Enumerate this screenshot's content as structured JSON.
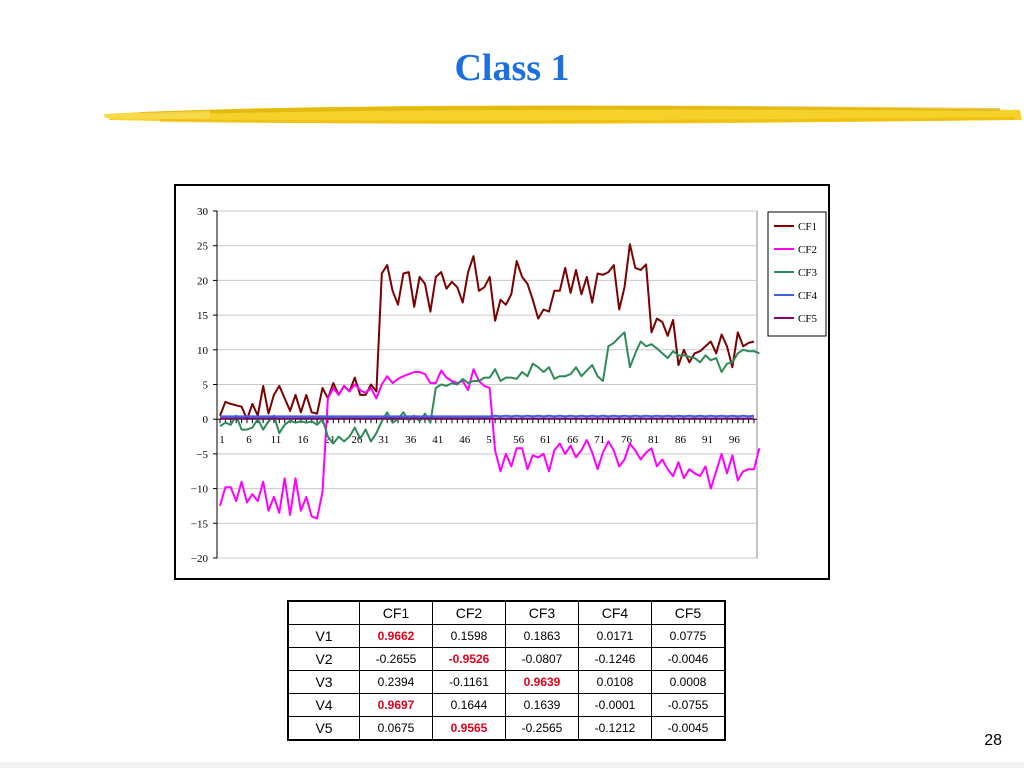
{
  "slide": {
    "title": "Class 1",
    "page_number": "28",
    "colors": {
      "title": "#1c6fe0",
      "brush": "#f5cf1f",
      "highlight": "#e3001b"
    }
  },
  "chart_data": {
    "type": "line",
    "ylim": [
      -20,
      30
    ],
    "yticks": [
      "30",
      "25",
      "20",
      "15",
      "10",
      "5",
      "0",
      "-5",
      "-10",
      "-15",
      "-20"
    ],
    "xticks": [
      "1",
      "6",
      "11",
      "16",
      "21",
      "26",
      "31",
      "36",
      "41",
      "46",
      "51",
      "56",
      "61",
      "66",
      "71",
      "76",
      "81",
      "86",
      "91",
      "96"
    ],
    "legend_position": "right",
    "series": [
      {
        "name": "CF1",
        "color": "#7b0000",
        "values": [
          0.5,
          2.5,
          2.2,
          2,
          1.8,
          0,
          2.2,
          0.5,
          4.8,
          0.8,
          3.5,
          4.8,
          3,
          1.2,
          3.5,
          1,
          3.5,
          1,
          0.8,
          4.5,
          3,
          5.2,
          3.5,
          4.8,
          4,
          6,
          3.5,
          3.5,
          5,
          4,
          21,
          22.2,
          18.5,
          16.5,
          21,
          21.2,
          16.2,
          20.5,
          19.5,
          15.5,
          20.5,
          21.2,
          18.8,
          19.8,
          19,
          16.8,
          21.2,
          23.5,
          18.5,
          19,
          20.5,
          14.2,
          17.2,
          16.5,
          18,
          22.8,
          20.5,
          19.5,
          17.2,
          14.5,
          15.8,
          15.5,
          18.5,
          18.5,
          21.8,
          18.2,
          21.5,
          18,
          20.5,
          16.8,
          21,
          20.8,
          21.2,
          22.2,
          15.8,
          19,
          25.2,
          21.8,
          21.5,
          22.3,
          12.5,
          14.5,
          14,
          12,
          14.3,
          7.8,
          10,
          8.2,
          9.5,
          9.8,
          10.5,
          11.2,
          9.5,
          12.2,
          10.5,
          7.5,
          12.5,
          10.5,
          11,
          11.2
        ]
      },
      {
        "name": "CF2",
        "color": "#ff00ff",
        "values": [
          -12.5,
          -9.8,
          -9.8,
          -11.8,
          -9,
          -12,
          -10.8,
          -11.8,
          -9,
          -13.2,
          -11.2,
          -13.5,
          -8.5,
          -13.8,
          -8.5,
          -13.2,
          -11.2,
          -14,
          -14.3,
          -10.5,
          3,
          4.5,
          3.5,
          4.8,
          4,
          5,
          4.2,
          3.8,
          4.5,
          3,
          5,
          6.2,
          5.2,
          5.8,
          6.2,
          6.5,
          6.8,
          6.8,
          6.5,
          5.2,
          5.2,
          7,
          6,
          5.5,
          5.2,
          5.5,
          4.2,
          7.2,
          5.5,
          4.8,
          4.5,
          -4.5,
          -7.5,
          -5,
          -6.8,
          -4.2,
          -4.2,
          -7.2,
          -5.2,
          -5.5,
          -5,
          -7.5,
          -4.5,
          -3.5,
          -5,
          -3.8,
          -5.5,
          -4.5,
          -3,
          -4.8,
          -7.2,
          -4.8,
          -3.2,
          -4.5,
          -6.8,
          -5.8,
          -3.5,
          -4.5,
          -5.8,
          -4.8,
          -4.2,
          -6.8,
          -5.8,
          -7.2,
          -8.2,
          -6.2,
          -8.5,
          -7.2,
          -7.8,
          -8.2,
          -6.8,
          -10,
          -7.5,
          -5,
          -7.8,
          -5.2,
          -8.8,
          -7.5,
          -7.2,
          -7.2,
          -4.2
        ]
      },
      {
        "name": "CF3",
        "color": "#2e8b57",
        "values": [
          -1,
          -0.5,
          -0.8,
          0.5,
          -1.5,
          -1.5,
          -1.2,
          0,
          -1.5,
          -0.3,
          0.5,
          -2,
          -0.8,
          -0.2,
          -0.5,
          -0.3,
          -0.5,
          -0.3,
          -0.8,
          0,
          -2.5,
          -3.5,
          -2.5,
          -3.2,
          -2.5,
          -1.2,
          -2.8,
          -1.5,
          -3.2,
          -2,
          -0.3,
          1,
          -0.5,
          0,
          1,
          -0.2,
          0.5,
          -0.3,
          0.8,
          -0.5,
          4.5,
          5,
          4.8,
          5.2,
          5,
          5.8,
          5.2,
          5.5,
          5.5,
          6,
          6,
          7.2,
          5.5,
          6,
          6,
          5.8,
          6.8,
          6.2,
          8,
          7.5,
          6.8,
          7.5,
          5.8,
          6.2,
          6.2,
          6.5,
          7.5,
          6.2,
          7,
          7.8,
          6.2,
          5.5,
          10.5,
          11,
          11.8,
          12.5,
          7.5,
          9.5,
          11.2,
          10.5,
          10.8,
          10.2,
          9.5,
          8.8,
          9.8,
          9.2,
          9.2,
          9,
          8.8,
          8.2,
          9.2,
          8.5,
          8.8,
          6.8,
          8,
          8.2,
          9.5,
          10,
          9.8,
          9.8,
          9.5
        ]
      },
      {
        "name": "CF4",
        "color": "#3f5fe8",
        "values": [
          0.4,
          0.4,
          0.4,
          0.4,
          0.4,
          0.4,
          0.4,
          0.4,
          0.4,
          0.4,
          0.4,
          0.4,
          0.4,
          0.4,
          0.4,
          0.4,
          0.4,
          0.4,
          0.4,
          0.4,
          0.4,
          0.4,
          0.4,
          0.4,
          0.4,
          0.4,
          0.4,
          0.4,
          0.4,
          0.4,
          0.4,
          0.4,
          0.4,
          0.4,
          0.4,
          0.4,
          0.4,
          0.4,
          0.4,
          0.4,
          0.4,
          0.4,
          0.4,
          0.4,
          0.4,
          0.4,
          0.4,
          0.4,
          0.4,
          0.4,
          0.4,
          0.5,
          0.4,
          0.5,
          0.4,
          0.5,
          0.4,
          0.5,
          0.4,
          0.5,
          0.4,
          0.5,
          0.4,
          0.5,
          0.4,
          0.5,
          0.4,
          0.5,
          0.4,
          0.5,
          0.4,
          0.5,
          0.4,
          0.5,
          0.4,
          0.5,
          0.4,
          0.5,
          0.4,
          0.5,
          0.4,
          0.5,
          0.4,
          0.5,
          0.4,
          0.5,
          0.4,
          0.5,
          0.4,
          0.5,
          0.4,
          0.5,
          0.4,
          0.5,
          0.4,
          0.5,
          0.4,
          0.5,
          0.4,
          0.5
        ]
      },
      {
        "name": "CF5",
        "color": "#7a0a6e",
        "values": [
          0.1,
          0.1,
          0.1,
          0.1,
          0.1,
          0.1,
          0.1,
          0.1,
          0.1,
          0.1,
          0.1,
          0.1,
          0.1,
          0.1,
          0.1,
          0.1,
          0.1,
          0.1,
          0.1,
          0.1,
          0.1,
          0.1,
          0.1,
          0.1,
          0.1,
          0.1,
          0.1,
          0.1,
          0.1,
          0.1,
          0.1,
          0.1,
          0.1,
          0.1,
          0.1,
          0.1,
          0.1,
          0.1,
          0.1,
          0.1,
          0.1,
          0.1,
          0.1,
          0.1,
          0.1,
          0.1,
          0.1,
          0.1,
          0.1,
          0.1,
          0.1,
          0.1,
          0.1,
          0.1,
          0.1,
          0.1,
          0.1,
          0.1,
          0.1,
          0.1,
          0.1,
          0.1,
          0.1,
          0.1,
          0.1,
          0.1,
          0.1,
          0.1,
          0.1,
          0.1,
          0.1,
          0.1,
          0.1,
          0.1,
          0.1,
          0.1,
          0.1,
          0.1,
          0.1,
          0.1,
          0.1,
          0.1,
          0.1,
          0.1,
          0.1,
          0.1,
          0.1,
          0.1,
          0.1,
          0.1,
          0.1,
          0.1,
          0.1,
          0.1,
          0.1,
          0.1,
          0.1,
          0.1,
          0.1,
          0.1
        ]
      }
    ]
  },
  "table": {
    "columns": [
      "CF1",
      "CF2",
      "CF3",
      "CF4",
      "CF5"
    ],
    "rows": [
      {
        "label": "V1",
        "values": [
          "0.9662",
          "0.1598",
          "0.1863",
          "0.0171",
          "0.0775"
        ],
        "highlight": [
          0
        ]
      },
      {
        "label": "V2",
        "values": [
          "-0.2655",
          "-0.9526",
          "-0.0807",
          "-0.1246",
          "-0.0046"
        ],
        "highlight": [
          1
        ]
      },
      {
        "label": "V3",
        "values": [
          "0.2394",
          "-0.1161",
          "0.9639",
          "0.0108",
          "0.0008"
        ],
        "highlight": [
          2
        ]
      },
      {
        "label": "V4",
        "values": [
          "0.9697",
          "0.1644",
          "0.1639",
          "-0.0001",
          "-0.0755"
        ],
        "highlight": [
          0
        ]
      },
      {
        "label": "V5",
        "values": [
          "0.0675",
          "0.9565",
          "-0.2565",
          "-0.1212",
          "-0.0045"
        ],
        "highlight": [
          1
        ]
      }
    ]
  }
}
